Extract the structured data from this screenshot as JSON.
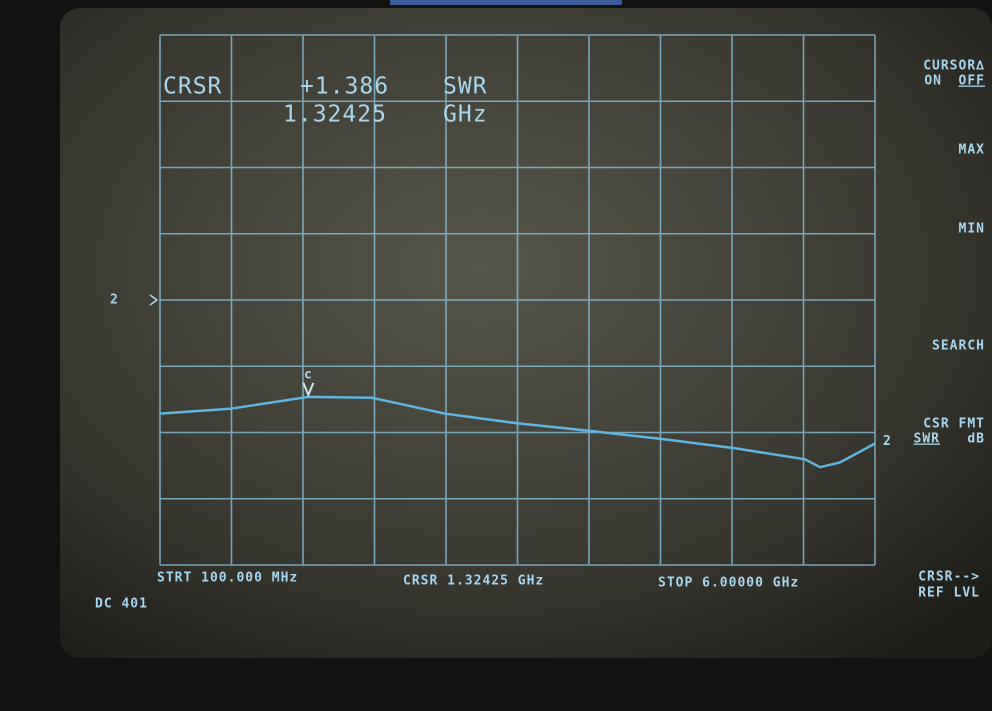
{
  "chart_data": {
    "type": "line",
    "readout": {
      "label": "CRSR",
      "value": 1.386,
      "value_label": "+1.386",
      "unit": "SWR",
      "freq": "1.32425",
      "freq_unit": "GHz"
    },
    "cursor": {
      "x": 1324.25,
      "value": 1.386,
      "marker": "c"
    },
    "x": [
      100,
      678,
      1324.25,
      1849,
      2452,
      3029,
      3648,
      4226,
      4845,
      5422,
      5546,
      5711,
      6000
    ],
    "series": [
      {
        "name": "2",
        "color": "#5fb4e0",
        "values": [
          1.28,
          1.31,
          1.386,
          1.38,
          1.28,
          1.22,
          1.17,
          1.12,
          1.06,
          0.99,
          0.94,
          0.97,
          1.09
        ]
      }
    ],
    "xlim": [
      100,
      6000
    ],
    "ylim": [
      0.32,
      3.68
    ],
    "ref_marker": "2",
    "footer": {
      "start": "STRT 100.000 MHz",
      "cursor": "CRSR 1.32425 GHz",
      "stop": "STOP 6.00000 GHz",
      "status": "DC 401"
    },
    "softkeys": {
      "cursor_delta": "CURSOR∆",
      "on": "ON",
      "off": "OFF",
      "max": "MAX",
      "min": "MIN",
      "search": "SEARCH",
      "csr_fmt": "CSR FMT",
      "swr": "SWR",
      "db": "dB",
      "crsr_to": "CRSR-->",
      "ref_lvl": "REF LVL"
    }
  }
}
